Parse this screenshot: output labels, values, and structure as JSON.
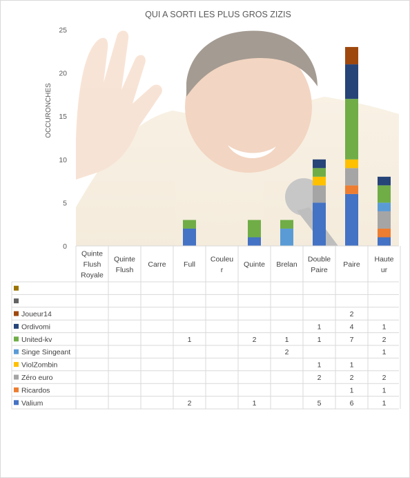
{
  "chart_data": {
    "type": "bar",
    "stacked": true,
    "title": "QUI A SORTI LES PLUS GROS ZIZIS",
    "ylabel": "OCCURONCHES",
    "xlabel": "",
    "ylim": [
      0,
      25
    ],
    "yticks": [
      0,
      5,
      10,
      15,
      20,
      25
    ],
    "grid": false,
    "legend": "data-table",
    "background_image": "laughing-man-photo",
    "categories": [
      [
        "Quinte",
        "Flush",
        "Royale"
      ],
      [
        "Quinte",
        "Flush"
      ],
      [
        "Carre"
      ],
      [
        "Full"
      ],
      [
        "Couleu",
        "r"
      ],
      [
        "Quinte"
      ],
      [
        "Brelan"
      ],
      [
        "Double",
        "Paire"
      ],
      [
        "Paire"
      ],
      [
        "Haute",
        "ur"
      ]
    ],
    "series": [
      {
        "name": "Valium",
        "color": "#4472c4",
        "values": [
          null,
          null,
          null,
          2,
          null,
          1,
          null,
          5,
          6,
          1
        ]
      },
      {
        "name": "Ricardos",
        "color": "#ed7d31",
        "values": [
          null,
          null,
          null,
          null,
          null,
          null,
          null,
          null,
          1,
          1
        ]
      },
      {
        "name": "Zéro euro",
        "color": "#a5a5a5",
        "values": [
          null,
          null,
          null,
          null,
          null,
          null,
          null,
          2,
          2,
          2
        ]
      },
      {
        "name": "ViolZombin",
        "color": "#ffc000",
        "values": [
          null,
          null,
          null,
          null,
          null,
          null,
          null,
          1,
          1,
          null
        ]
      },
      {
        "name": "Singe Singeant",
        "color": "#5b9bd5",
        "values": [
          null,
          null,
          null,
          null,
          null,
          null,
          2,
          null,
          null,
          1
        ]
      },
      {
        "name": "United-kv",
        "color": "#70ad47",
        "values": [
          null,
          null,
          null,
          1,
          null,
          2,
          1,
          1,
          7,
          2
        ]
      },
      {
        "name": "Ordivomi",
        "color": "#264478",
        "values": [
          null,
          null,
          null,
          null,
          null,
          null,
          null,
          1,
          4,
          1
        ]
      },
      {
        "name": "Joueur14",
        "color": "#9e480e",
        "values": [
          null,
          null,
          null,
          null,
          null,
          null,
          null,
          null,
          2,
          null
        ]
      },
      {
        "name": "",
        "color": "#636363",
        "values": [
          null,
          null,
          null,
          null,
          null,
          null,
          null,
          null,
          null,
          null
        ]
      },
      {
        "name": "",
        "color": "#997300",
        "values": [
          null,
          null,
          null,
          null,
          null,
          null,
          null,
          null,
          null,
          null
        ]
      }
    ]
  }
}
